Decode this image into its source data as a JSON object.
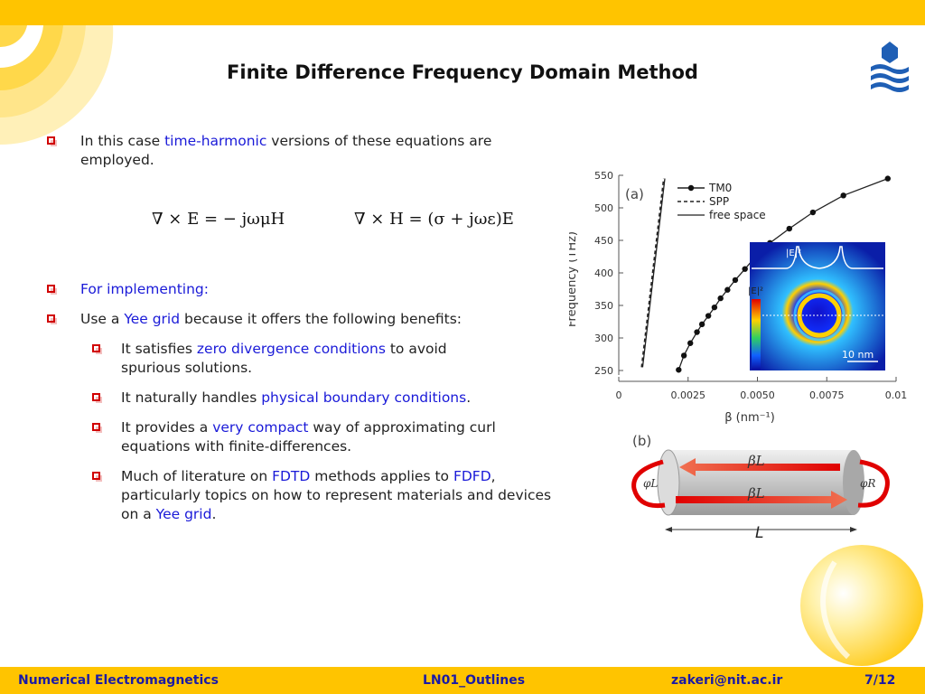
{
  "slide": {
    "title": "Finite Difference Frequency Domain Method"
  },
  "bullets": {
    "b1": {
      "pre": "In this case ",
      "hl": "time-harmonic",
      "post": " versions of these equations are employed."
    },
    "eq1": "∇ × E = − jωμH",
    "eq2": "∇ × H = (σ + jωε)E",
    "b2": {
      "hl": "For implementing:"
    },
    "b3": {
      "pre": "Use a ",
      "hl": "Yee grid",
      "post": " because it offers the following benefits:"
    },
    "s1": {
      "pre": "It satisfies ",
      "hl": "zero divergence conditions",
      "post": " to avoid spurious solutions."
    },
    "s2": {
      "pre": "It naturally handles ",
      "hl": "physical boundary conditions",
      "post": "."
    },
    "s3": {
      "pre": "It provides a ",
      "hl": "very compact",
      "post": " way of approximating curl equations with finite-differences."
    },
    "s4": {
      "pre": "Much of literature on ",
      "hl1": "FDTD",
      "mid": " methods applies to ",
      "hl2": "FDFD",
      "mid2": ", particularly topics on how to represent materials and devices on a ",
      "hl3": "Yee grid",
      "post": "."
    }
  },
  "figure": {
    "panel_a": "(a)",
    "panel_b": "(b)",
    "legend": [
      "TM0",
      "SPP",
      "free space"
    ],
    "ylabel": "Frequency (THz)",
    "xlabel": "β (nm⁻¹)",
    "yticks": [
      "550",
      "500",
      "450",
      "400",
      "350",
      "300",
      "250"
    ],
    "xticks": [
      "0",
      "0.0025",
      "0.0050",
      "0.0075",
      "0.01"
    ],
    "inset_label": "|E|²",
    "inset_scale": "10 nm",
    "beta_l": "βL",
    "phi_l": "φL",
    "phi_r": "φR",
    "L": "L"
  },
  "chart_data": {
    "type": "scatter",
    "title": "",
    "xlabel": "β (nm⁻¹)",
    "ylabel": "Frequency (THz)",
    "xlim": [
      0,
      0.01
    ],
    "ylim": [
      240,
      555
    ],
    "series": [
      {
        "name": "TM0",
        "style": "line+markers",
        "x": [
          0.00216,
          0.00235,
          0.00258,
          0.00282,
          0.003,
          0.00323,
          0.00345,
          0.00367,
          0.00392,
          0.0042,
          0.00455,
          0.00495,
          0.00545,
          0.00615,
          0.007,
          0.0081,
          0.0097
        ],
        "y": [
          251,
          273,
          292,
          309,
          321,
          334,
          347,
          361,
          374,
          389,
          406,
          426,
          446,
          468,
          493,
          519,
          545
        ]
      },
      {
        "name": "SPP",
        "style": "dashed",
        "x": [
          0.00082,
          0.00162
        ],
        "y": [
          255,
          545
        ]
      },
      {
        "name": "free space",
        "style": "solid",
        "x": [
          0.00086,
          0.00166
        ],
        "y": [
          255,
          545
        ]
      }
    ]
  },
  "footer": {
    "course": "Numerical Electromagnetics",
    "file": "LN01_Outlines",
    "email": "zakeri@nit.ac.ir",
    "page": "7/12"
  },
  "colors": {
    "bar": "#FFC400",
    "highlight": "#1a1ad8",
    "bullet": "#d10000",
    "footer_text": "#1a1aa6"
  }
}
